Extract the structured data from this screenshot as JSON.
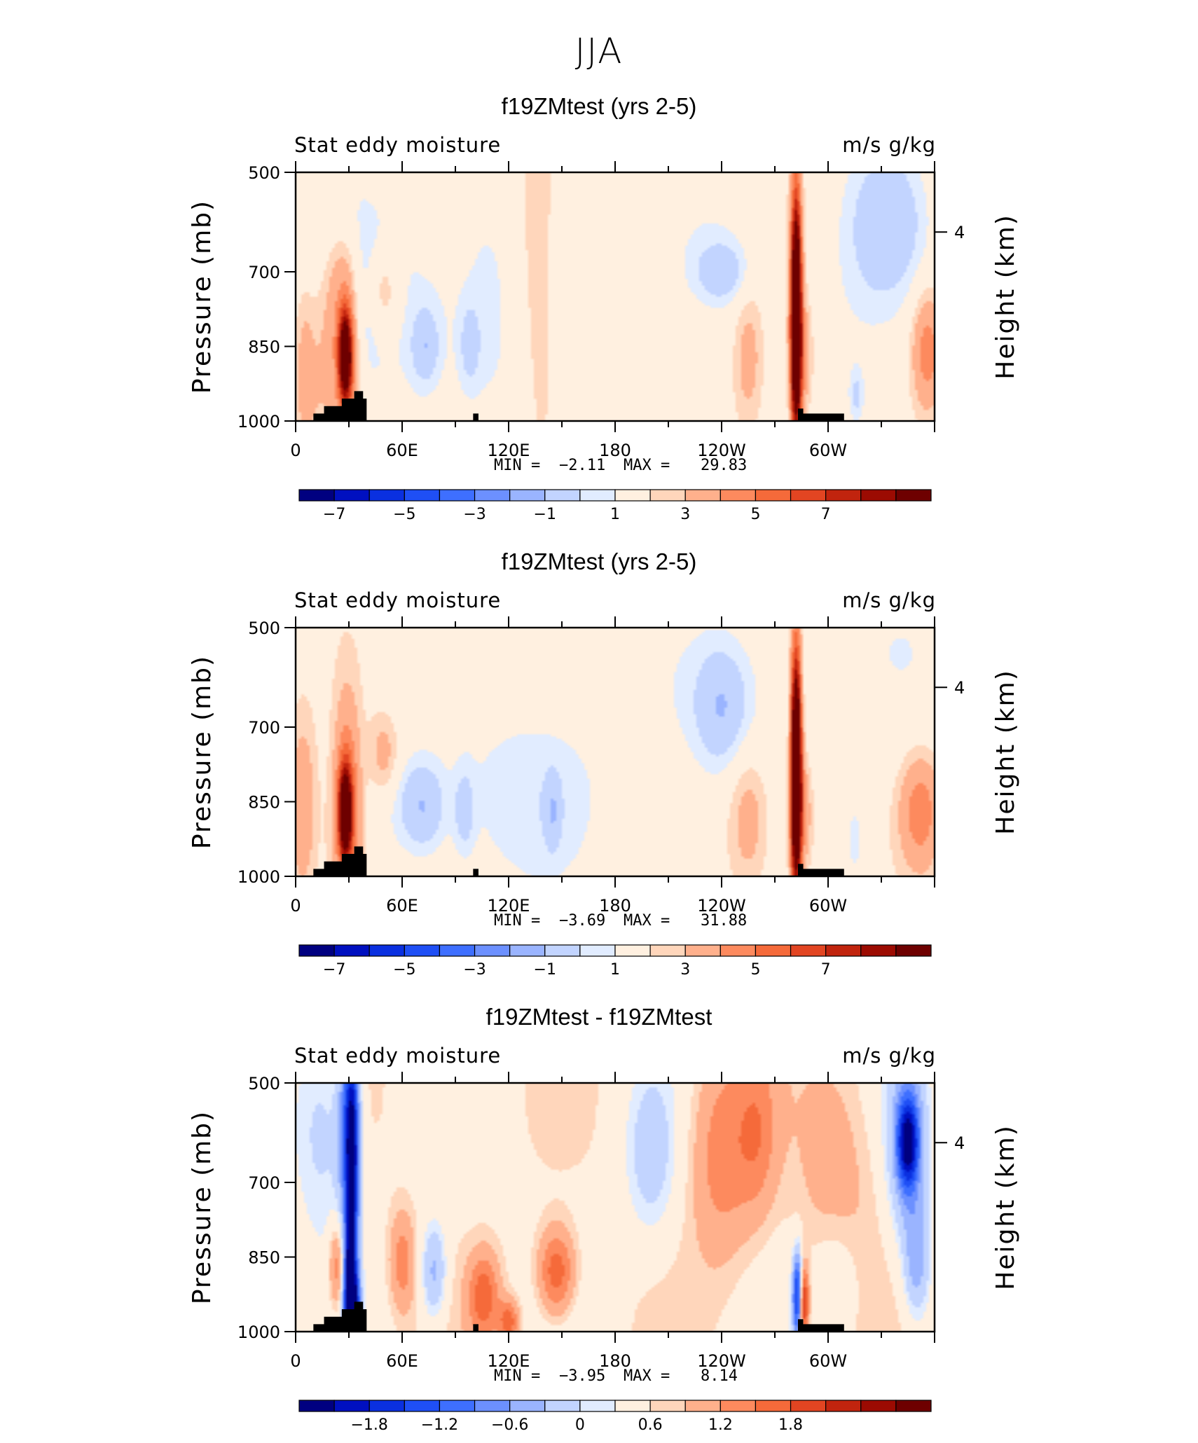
{
  "figure": {
    "title": "JJA"
  },
  "palette": [
    "#000080",
    "#0010c0",
    "#0a30e0",
    "#1f4ff5",
    "#3e6fff",
    "#6c90ff",
    "#9ab4ff",
    "#c2d4ff",
    "#e1ecff",
    "#fff0e0",
    "#ffd6bb",
    "#ffb08c",
    "#fd8a5e",
    "#f56a3a",
    "#e24522",
    "#c1240e",
    "#9c0b02",
    "#6e0000"
  ],
  "chart_data": [
    {
      "type": "heatmap",
      "title": "f19ZMtest (yrs 2-5)",
      "left_label": "Stat eddy moisture",
      "right_label": "m/s g/kg",
      "ylabel": "Pressure (mb)",
      "ylabel_right": "Height (km)",
      "ylim": [
        1000,
        500
      ],
      "yticks": [
        "500",
        "700",
        "850",
        "1000"
      ],
      "ytick_values": [
        500,
        700,
        850,
        1000
      ],
      "right_ticks": [
        "4"
      ],
      "right_tick_pressure": 620,
      "xlim": [
        0,
        360
      ],
      "xticks": [
        "0",
        "60E",
        "120E",
        "180",
        "120W",
        "60W"
      ],
      "xtick_values": [
        0,
        60,
        120,
        180,
        240,
        300
      ],
      "min_label": "MIN =",
      "min_value": "−2.11",
      "max_label": "MAX =",
      "max_value": "29.83",
      "colorbar_labels": [
        "−7",
        "−5",
        "−3",
        "−1",
        "1",
        "3",
        "5",
        "7"
      ],
      "levels": [
        -8,
        -7,
        -6,
        -5,
        -4,
        -3,
        -2,
        -1,
        -0.5,
        0.5,
        1,
        2,
        3,
        4,
        5,
        6,
        7,
        8
      ],
      "background": 0.2,
      "blobs": [
        [
          5,
          900,
          4,
          120,
          1.2
        ],
        [
          15,
          880,
          6,
          150,
          1.0
        ],
        [
          28,
          870,
          2.5,
          60,
          9
        ],
        [
          29,
          850,
          5,
          140,
          3
        ],
        [
          22,
          760,
          5,
          120,
          1.2
        ],
        [
          36,
          660,
          25,
          120,
          -0.7
        ],
        [
          20,
          560,
          18,
          80,
          -0.6
        ],
        [
          30,
          800,
          12,
          90,
          -0.6
        ],
        [
          50,
          740,
          6,
          60,
          1.4
        ],
        [
          75,
          860,
          30,
          150,
          -0.7
        ],
        [
          73,
          850,
          5,
          50,
          -1.5
        ],
        [
          98,
          850,
          4,
          60,
          -1.0
        ],
        [
          140,
          750,
          10,
          300,
          0.8
        ],
        [
          150,
          650,
          10,
          200,
          -0.6
        ],
        [
          110,
          760,
          10,
          200,
          -0.6
        ],
        [
          260,
          640,
          45,
          160,
          -0.8
        ],
        [
          240,
          700,
          10,
          40,
          -1.5
        ],
        [
          255,
          870,
          6,
          100,
          1.4
        ],
        [
          280,
          650,
          20,
          150,
          0.8
        ],
        [
          282,
          790,
          2,
          160,
          14
        ],
        [
          285,
          870,
          4,
          80,
          2
        ],
        [
          335,
          600,
          14,
          100,
          -1.6
        ],
        [
          320,
          760,
          22,
          200,
          -0.5
        ],
        [
          356,
          860,
          6,
          80,
          2.5
        ],
        [
          316,
          950,
          3,
          40,
          -1.2
        ]
      ]
    },
    {
      "type": "heatmap",
      "title": "f19ZMtest (yrs 2-5)",
      "left_label": "Stat eddy moisture",
      "right_label": "m/s g/kg",
      "ylabel": "Pressure (mb)",
      "ylabel_right": "Height (km)",
      "ylim": [
        1000,
        500
      ],
      "yticks": [
        "500",
        "700",
        "850",
        "1000"
      ],
      "ytick_values": [
        500,
        700,
        850,
        1000
      ],
      "right_ticks": [
        "4"
      ],
      "right_tick_pressure": 620,
      "xlim": [
        0,
        360
      ],
      "xticks": [
        "0",
        "60E",
        "120E",
        "180",
        "120W",
        "60W"
      ],
      "xtick_values": [
        0,
        60,
        120,
        180,
        240,
        300
      ],
      "min_label": "MIN =",
      "min_value": "−3.69",
      "max_label": "MAX =",
      "max_value": "31.88",
      "colorbar_labels": [
        "−7",
        "−5",
        "−3",
        "−1",
        "1",
        "3",
        "5",
        "7"
      ],
      "levels": [
        -8,
        -7,
        -6,
        -5,
        -4,
        -3,
        -2,
        -1,
        -0.5,
        0.5,
        1,
        2,
        3,
        4,
        5,
        6,
        7,
        8
      ],
      "background": 0.2,
      "blobs": [
        [
          4,
          860,
          5,
          120,
          1.6
        ],
        [
          28,
          870,
          2.5,
          60,
          9
        ],
        [
          29,
          850,
          5,
          140,
          3
        ],
        [
          50,
          760,
          6,
          60,
          1.4
        ],
        [
          30,
          930,
          10,
          100,
          0.6
        ],
        [
          60,
          850,
          15,
          80,
          -0.7
        ],
        [
          72,
          860,
          8,
          60,
          -1.5
        ],
        [
          95,
          870,
          4,
          60,
          -1.2
        ],
        [
          110,
          850,
          30,
          150,
          -0.6
        ],
        [
          145,
          840,
          25,
          140,
          -0.7
        ],
        [
          145,
          870,
          3,
          50,
          -1.3
        ],
        [
          240,
          640,
          40,
          150,
          -0.7
        ],
        [
          240,
          660,
          10,
          80,
          -1.6
        ],
        [
          255,
          880,
          8,
          100,
          1.4
        ],
        [
          282,
          790,
          2,
          160,
          14
        ],
        [
          285,
          870,
          4,
          80,
          2
        ],
        [
          350,
          560,
          30,
          150,
          -0.6
        ],
        [
          352,
          870,
          8,
          80,
          2.5
        ],
        [
          315,
          930,
          4,
          60,
          -1.0
        ],
        [
          55,
          540,
          6,
          80,
          -0.6
        ]
      ]
    },
    {
      "type": "heatmap",
      "title": "f19ZMtest - f19ZMtest",
      "left_label": "Stat eddy moisture",
      "right_label": "m/s g/kg",
      "ylabel": "Pressure (mb)",
      "ylabel_right": "Height (km)",
      "ylim": [
        1000,
        500
      ],
      "yticks": [
        "500",
        "700",
        "850",
        "1000"
      ],
      "ytick_values": [
        500,
        700,
        850,
        1000
      ],
      "right_ticks": [
        "4"
      ],
      "right_tick_pressure": 620,
      "xlim": [
        0,
        360
      ],
      "xticks": [
        "0",
        "60E",
        "120E",
        "180",
        "120W",
        "60W"
      ],
      "xtick_values": [
        0,
        60,
        120,
        180,
        240,
        300
      ],
      "min_label": "MIN =",
      "min_value": "−3.95",
      "max_label": "MAX =",
      "max_value": "8.14",
      "colorbar_labels": [
        "−1.8",
        "−1.2",
        "−0.6",
        "0",
        "0.6",
        "1.2",
        "1.8"
      ],
      "levels": [
        -2.4,
        -2.1,
        -1.8,
        -1.5,
        -1.2,
        -0.9,
        -0.6,
        -0.3,
        -0.15,
        0.15,
        0.3,
        0.6,
        0.9,
        1.2,
        1.5,
        1.8,
        2.1,
        2.4
      ],
      "background": 0.08,
      "blobs": [
        [
          15,
          590,
          12,
          160,
          -0.5
        ],
        [
          30,
          600,
          4,
          130,
          -1.5
        ],
        [
          32,
          700,
          2.5,
          200,
          -1.8
        ],
        [
          23,
          870,
          3,
          60,
          0.8
        ],
        [
          30,
          880,
          2,
          80,
          -1.5
        ],
        [
          32,
          960,
          3,
          60,
          -2.4
        ],
        [
          60,
          860,
          5,
          70,
          0.7
        ],
        [
          78,
          880,
          5,
          70,
          -0.8
        ],
        [
          106,
          930,
          6,
          60,
          1.0
        ],
        [
          120,
          980,
          4,
          30,
          1.0
        ],
        [
          147,
          880,
          7,
          60,
          1.1
        ],
        [
          200,
          650,
          10,
          120,
          -0.5
        ],
        [
          240,
          640,
          12,
          150,
          0.7
        ],
        [
          260,
          600,
          8,
          120,
          0.6
        ],
        [
          283,
          930,
          2,
          60,
          -2.4
        ],
        [
          286,
          940,
          2,
          50,
          2
        ],
        [
          305,
          900,
          10,
          100,
          -0.4
        ],
        [
          345,
          620,
          8,
          140,
          -1.0
        ],
        [
          345,
          620,
          4,
          60,
          -2.0
        ],
        [
          350,
          860,
          5,
          80,
          -0.8
        ],
        [
          305,
          700,
          15,
          200,
          0.4
        ]
      ]
    }
  ]
}
